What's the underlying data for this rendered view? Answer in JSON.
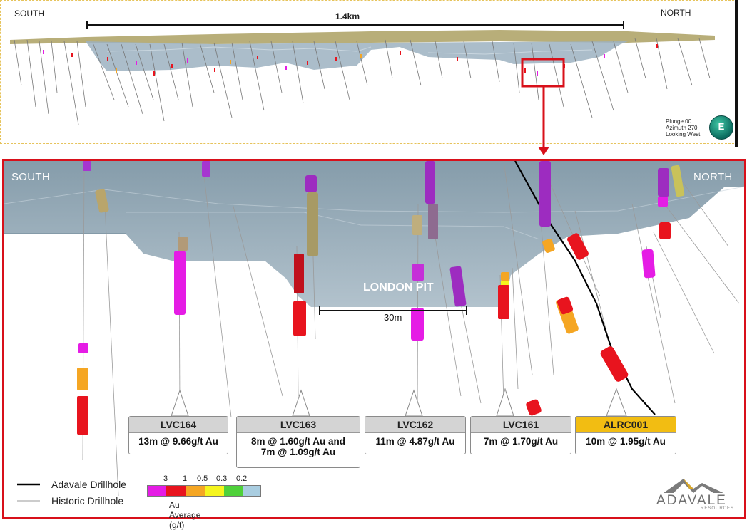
{
  "overview": {
    "south_label": "SOUTH",
    "north_label": "NORTH",
    "scale_label": "1.4km",
    "view_info": [
      "Plunge 00",
      "Azimuth 270",
      "Looking West"
    ],
    "compass_letter": "E"
  },
  "detail": {
    "south_label": "SOUTH",
    "north_label": "NORTH",
    "pit_label": "LONDON PIT",
    "scale_label": "30m"
  },
  "callouts": [
    {
      "hole": "LVC164",
      "intercepts": [
        "13m @ 9.66g/t Au"
      ],
      "highlight": false
    },
    {
      "hole": "LVC163",
      "intercepts": [
        "8m @ 1.60g/t Au and",
        "7m @ 1.09g/t Au"
      ],
      "highlight": false
    },
    {
      "hole": "LVC162",
      "intercepts": [
        "11m @ 4.87g/t Au"
      ],
      "highlight": false
    },
    {
      "hole": "LVC161",
      "intercepts": [
        "7m @ 1.70g/t Au"
      ],
      "highlight": false
    },
    {
      "hole": "ALRC001",
      "intercepts": [
        "10m @ 1.95g/t Au"
      ],
      "highlight": true
    }
  ],
  "legend": {
    "adavale_label": "Adavale Drillhole",
    "historic_label": "Historic Drillhole",
    "scale_title": "Au Average (g/t)",
    "scale_ticks": [
      "3",
      "1",
      "0.5",
      "0.3",
      "0.2"
    ],
    "scale_colors": [
      "#e51ce5",
      "#e8141e",
      "#f5a623",
      "#f5f51e",
      "#4fd13a",
      "#a9cde0"
    ]
  },
  "logo": {
    "name": "ADAVALE",
    "tagline": "RESOURCES"
  },
  "colors": {
    "frame_red": "#d8101a",
    "pit_fill": "#8fa9b8",
    "adavale_line": "#000000",
    "historic_line": "#9a9a9a"
  }
}
